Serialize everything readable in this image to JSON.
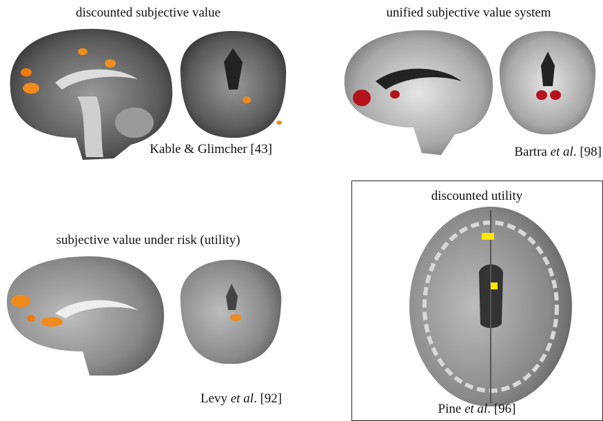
{
  "panels": [
    {
      "title": "discounted subjective value",
      "citation": {
        "text": "Kable & Glimcher [43]"
      }
    },
    {
      "title": "unified subjective value system",
      "citation": {
        "author": "Bartra ",
        "etal": "et al",
        "ref": ". [98]"
      }
    },
    {
      "title": "subjective value under risk (utility)",
      "citation": {
        "author": "Levy ",
        "etal": "et al",
        "ref": ". [92]"
      }
    },
    {
      "title": "discounted utility",
      "citation": {
        "author": "Pine ",
        "etal": "et al",
        "ref": ". [96]"
      }
    }
  ]
}
